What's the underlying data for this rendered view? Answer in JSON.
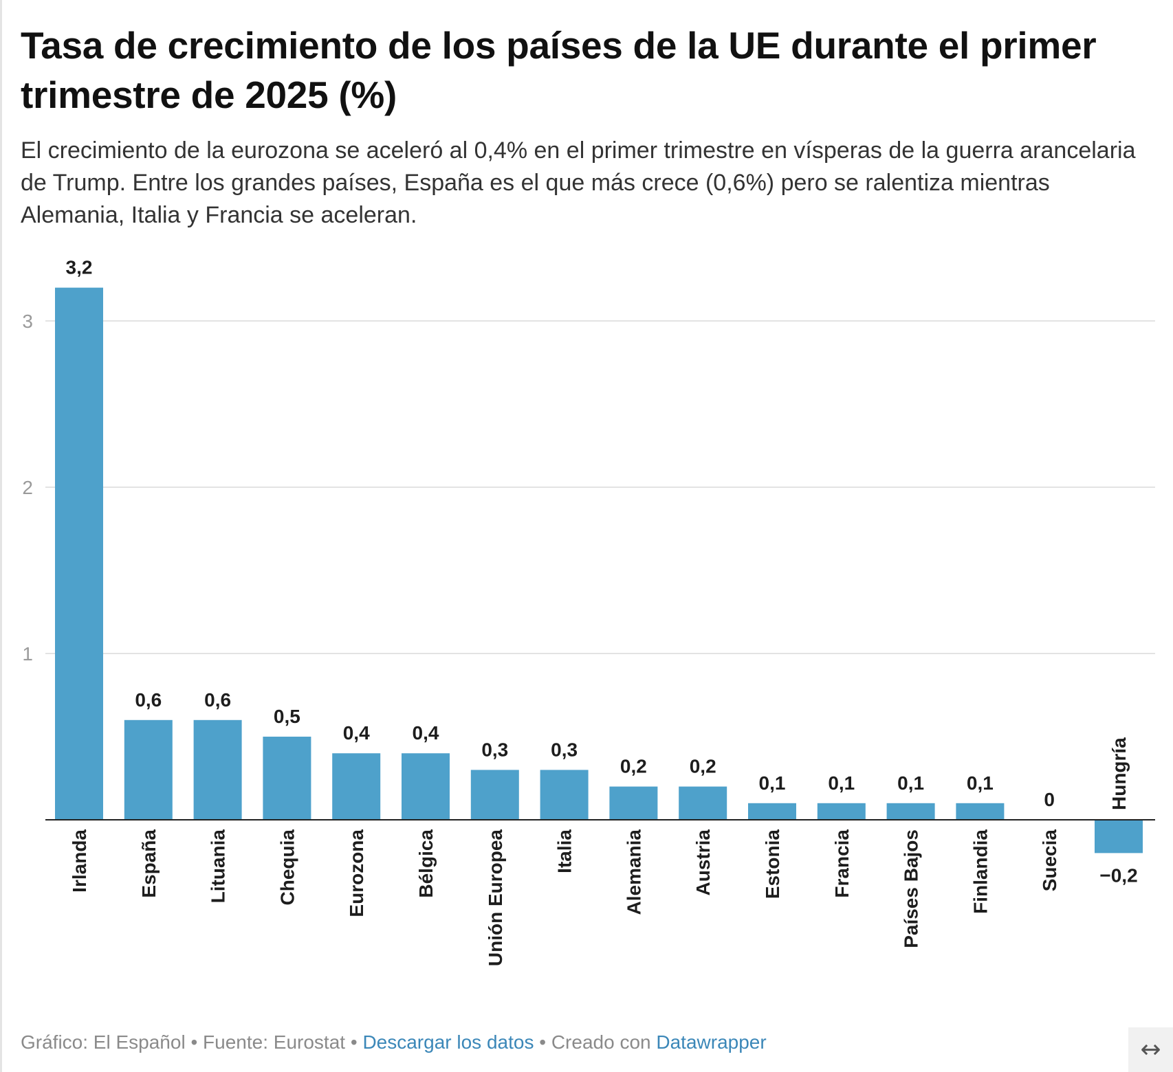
{
  "chart_data": {
    "type": "bar",
    "title": "Tasa de crecimiento de los países de la UE durante el primer trimestre de 2025 (%)",
    "subtitle": "El crecimiento de la eurozona se aceleró al 0,4% en el primer trimestre en vísperas de la guerra arancelaria de Trump. Entre los grandes países, España es el que más crece (0,6%) pero se ralentiza mientras Alemania, Italia y Francia se aceleran.",
    "categories": [
      "Irlanda",
      "España",
      "Lituania",
      "Chequia",
      "Eurozona",
      "Bélgica",
      "Unión Europea",
      "Italia",
      "Alemania",
      "Austria",
      "Estonia",
      "Francia",
      "Países Bajos",
      "Finlandia",
      "Suecia",
      "Hungría"
    ],
    "values": [
      3.2,
      0.6,
      0.6,
      0.5,
      0.4,
      0.4,
      0.3,
      0.3,
      0.2,
      0.2,
      0.1,
      0.1,
      0.1,
      0.1,
      0,
      -0.2
    ],
    "value_labels": [
      "3,2",
      "0,6",
      "0,6",
      "0,5",
      "0,4",
      "0,4",
      "0,3",
      "0,3",
      "0,2",
      "0,2",
      "0,1",
      "0,1",
      "0,1",
      "0,1",
      "0",
      "−0,2"
    ],
    "y_ticks": [
      1,
      2,
      3
    ],
    "ylim": [
      -0.2,
      3.2
    ],
    "xlabel": "",
    "ylabel": "",
    "grid": true,
    "bar_color": "#4ea1cb"
  },
  "footer": {
    "credit": "Gráfico: El Español",
    "separator": " • ",
    "source": "Fuente: Eurostat",
    "download_label": "Descargar los datos",
    "created_prefix": "Creado con ",
    "tool_label": "Datawrapper"
  },
  "controls": {
    "expand_icon": "↔"
  }
}
